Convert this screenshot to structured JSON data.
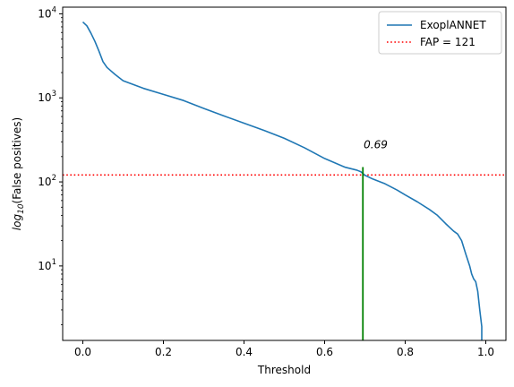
{
  "chart_data": {
    "type": "line",
    "xlabel": "Threshold",
    "ylabel_prefix": "log",
    "ylabel_sub": "10",
    "ylabel_suffix": "(False positives)",
    "xlim": [
      -0.05,
      1.05
    ],
    "ylim": [
      1.3,
      12000
    ],
    "yscale": "log",
    "grid": false,
    "legend_position": "top-right",
    "x_ticks": [
      0.0,
      0.2,
      0.4,
      0.6,
      0.8,
      1.0
    ],
    "x_tick_labels": [
      "0.0",
      "0.2",
      "0.4",
      "0.6",
      "0.8",
      "1.0"
    ],
    "y_ticks": [
      10,
      100,
      1000,
      10000
    ],
    "y_tick_labels": [
      {
        "base": "10",
        "exp": "1"
      },
      {
        "base": "10",
        "exp": "2"
      },
      {
        "base": "10",
        "exp": "3"
      },
      {
        "base": "10",
        "exp": "4"
      }
    ],
    "series": [
      {
        "name": "ExoplANNET",
        "color": "#1f77b4",
        "x": [
          0.0,
          0.01,
          0.02,
          0.03,
          0.04,
          0.05,
          0.06,
          0.08,
          0.1,
          0.15,
          0.2,
          0.25,
          0.3,
          0.35,
          0.4,
          0.45,
          0.5,
          0.55,
          0.6,
          0.65,
          0.68,
          0.69,
          0.7,
          0.72,
          0.75,
          0.78,
          0.8,
          0.83,
          0.86,
          0.88,
          0.9,
          0.92,
          0.93,
          0.94,
          0.95,
          0.96,
          0.965,
          0.97,
          0.975,
          0.98,
          0.985,
          0.99
        ],
        "y": [
          8000,
          7200,
          5900,
          4700,
          3600,
          2700,
          2300,
          1900,
          1600,
          1300,
          1100,
          930,
          750,
          610,
          500,
          410,
          330,
          255,
          190,
          150,
          138,
          132,
          120,
          108,
          95,
          80,
          70,
          58,
          47,
          40,
          32,
          26,
          24,
          20,
          14,
          10,
          8,
          7,
          6.5,
          5,
          3,
          1.9
        ]
      },
      {
        "name": "FAP = 121",
        "color": "#ff0000",
        "style": "dotted",
        "constant_y": 121
      }
    ],
    "vertical_marker": {
      "x": 0.695,
      "y_top": 150,
      "color": "#008000"
    },
    "annotations": [
      {
        "text": "0.69",
        "x": 0.697,
        "y": 250
      }
    ]
  }
}
